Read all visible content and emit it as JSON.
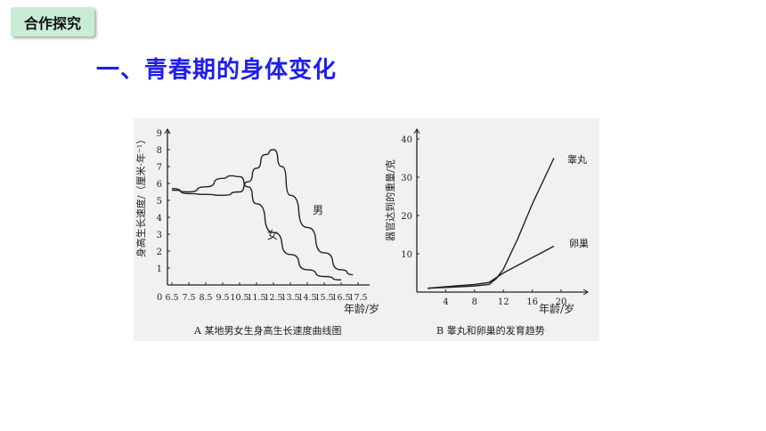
{
  "badge": {
    "label": "合作探究"
  },
  "heading": {
    "text": "一、青春期的身体变化"
  },
  "colors": {
    "heading": "#1f1fe6",
    "badge_bg": "#c9ecd6"
  },
  "chart_data": [
    {
      "type": "line",
      "caption": "A 某地男女生身高生长速度曲线图",
      "ylabel": "身高生长速度/（厘米·年⁻¹）",
      "xlabel": "年龄/岁",
      "x_ticks": [
        "0",
        "6.5",
        "7.5",
        "8.5",
        "9.5",
        "10.5",
        "11.5",
        "12.5",
        "13.5",
        "14.5",
        "15.5",
        "16.5",
        "17.5"
      ],
      "y_ticks": [
        "1",
        "2",
        "3",
        "4",
        "5",
        "6",
        "7",
        "8",
        "9"
      ],
      "xlim": [
        5.5,
        17.5
      ],
      "ylim": [
        0,
        9.5
      ],
      "series": [
        {
          "name": "男",
          "x": [
            6.5,
            7.5,
            8.5,
            9.5,
            10.5,
            11.0,
            11.5,
            12.0,
            12.5,
            13.0,
            13.5,
            14.5,
            15.5,
            16.5,
            17.2
          ],
          "y": [
            5.7,
            5.4,
            5.35,
            5.3,
            5.5,
            6.1,
            6.9,
            7.7,
            8.0,
            7.0,
            5.3,
            3.4,
            1.9,
            0.9,
            0.6
          ]
        },
        {
          "name": "女",
          "x": [
            6.5,
            7.5,
            8.5,
            9.5,
            10.0,
            10.5,
            11.0,
            11.5,
            12.5,
            13.5,
            14.5,
            15.5,
            16.5
          ],
          "y": [
            5.6,
            5.5,
            5.8,
            6.3,
            6.45,
            6.4,
            5.8,
            4.8,
            3.1,
            1.8,
            0.9,
            0.5,
            0.3
          ]
        }
      ]
    },
    {
      "type": "line",
      "caption": "B 睾丸和卵巢的发育趋势",
      "ylabel": "器官达到的重量/克",
      "xlabel": "年龄/岁",
      "x_ticks": [
        "4",
        "8",
        "12",
        "16",
        "20"
      ],
      "y_ticks": [
        "10",
        "20",
        "30",
        "40"
      ],
      "xlim": [
        0,
        21
      ],
      "ylim": [
        0,
        42
      ],
      "series": [
        {
          "name": "睾丸",
          "x": [
            1.5,
            4,
            8,
            10,
            11,
            12,
            14,
            16,
            18,
            19
          ],
          "y": [
            1,
            1.2,
            1.6,
            2,
            3.5,
            6,
            14,
            23,
            31,
            35
          ]
        },
        {
          "name": "卵巢",
          "x": [
            1.5,
            4,
            8,
            10,
            12,
            14,
            16,
            18,
            19
          ],
          "y": [
            1,
            1.4,
            2,
            2.5,
            5,
            7,
            9,
            11,
            12
          ]
        }
      ]
    }
  ]
}
